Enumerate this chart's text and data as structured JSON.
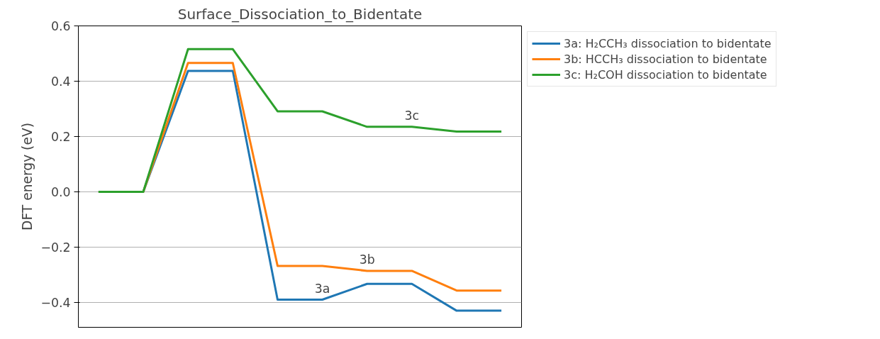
{
  "chart_data": {
    "type": "line",
    "title": "Surface_Dissociation_to_Bidentate",
    "ylabel": "DFT energy (eV)",
    "categories": [
      null,
      null,
      null,
      null,
      null,
      null,
      null,
      null,
      null,
      null
    ],
    "series": [
      {
        "name": "3a: H₂CCH₃ dissociation to bidentate",
        "color": "#1f77b4",
        "values": [
          0,
          0,
          0.437,
          0.437,
          -0.39,
          -0.39,
          -0.333,
          -0.333,
          -0.43,
          -0.43
        ]
      },
      {
        "name": "3b: HCCH₃ dissociation to bidentate",
        "color": "#ff7f0e",
        "values": [
          0,
          0,
          0.466,
          0.466,
          -0.268,
          -0.268,
          -0.286,
          -0.286,
          -0.357,
          -0.357
        ]
      },
      {
        "name": "3c: H₂COH dissociation to bidentate",
        "color": "#2ca02c",
        "values": [
          0,
          0,
          0.516,
          0.516,
          0.291,
          0.291,
          0.235,
          0.235,
          0.218,
          0.218
        ]
      }
    ],
    "annotations": [
      "3a",
      "3b",
      "3c"
    ],
    "ylim": [
      -0.49,
      0.6
    ],
    "yticks": [
      -0.4,
      -0.2,
      {
        "value": 0,
        "label": "0.0"
      },
      0.2,
      0.4,
      0.6
    ],
    "tick_labels": "y",
    "grid": "y",
    "legend": "top right",
    "line_style": "solid",
    "marker": "none"
  }
}
